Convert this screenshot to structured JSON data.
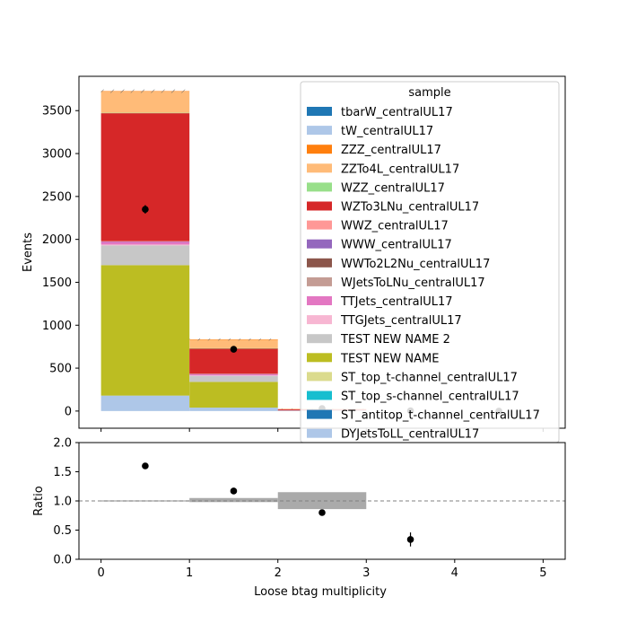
{
  "chart_data": [
    {
      "type": "bar",
      "stacked": true,
      "xlabel": "",
      "ylabel": "Events",
      "xlim": [
        -0.25,
        5.25
      ],
      "ylim": [
        -200,
        3900
      ],
      "yticks": [
        0,
        500,
        1000,
        1500,
        2000,
        2500,
        3000,
        3500
      ],
      "xticks": [
        0,
        1,
        2,
        3,
        4,
        5
      ],
      "bins": [
        [
          0,
          1
        ],
        [
          1,
          2
        ],
        [
          2,
          3
        ],
        [
          3,
          4
        ],
        [
          4,
          5
        ]
      ],
      "legend": {
        "title": "sample",
        "placement": "top-right"
      },
      "series": [
        {
          "name": "DYJetsToLL_centralUL17",
          "color": "#aec7e8",
          "values": [
            180,
            40,
            5,
            0,
            0
          ]
        },
        {
          "name": "ST_antitop_t-channel_centralUL17",
          "color": "#1f77b4",
          "values": [
            0,
            0,
            0,
            0,
            0
          ]
        },
        {
          "name": "ST_top_s-channel_centralUL17",
          "color": "#17becf",
          "values": [
            0,
            0,
            0,
            0,
            0
          ]
        },
        {
          "name": "ST_top_t-channel_centralUL17",
          "color": "#dbdb8d",
          "values": [
            0,
            0,
            0,
            0,
            0
          ]
        },
        {
          "name": "TEST NEW NAME",
          "color": "#bcbd22",
          "values": [
            1520,
            300,
            3,
            0,
            0
          ]
        },
        {
          "name": "TEST NEW NAME 2",
          "color": "#c7c7c7",
          "values": [
            230,
            70,
            2,
            0,
            0
          ]
        },
        {
          "name": "TTGJets_centralUL17",
          "color": "#f7b6d2",
          "values": [
            10,
            5,
            0,
            0,
            0
          ]
        },
        {
          "name": "TTJets_centralUL17",
          "color": "#e377c2",
          "values": [
            30,
            15,
            1,
            0,
            0
          ]
        },
        {
          "name": "WJetsToLNu_centralUL17",
          "color": "#c49c94",
          "values": [
            0,
            0,
            0,
            0,
            0
          ]
        },
        {
          "name": "WWTo2L2Nu_centralUL17",
          "color": "#8c564b",
          "values": [
            0,
            0,
            0,
            0,
            0
          ]
        },
        {
          "name": "WWW_centralUL17",
          "color": "#9467bd",
          "values": [
            5,
            2,
            0,
            0,
            0
          ]
        },
        {
          "name": "WWZ_centralUL17",
          "color": "#ff9896",
          "values": [
            5,
            3,
            0,
            0,
            0
          ]
        },
        {
          "name": "WZTo3LNu_centralUL17",
          "color": "#d62728",
          "values": [
            1490,
            295,
            12,
            0,
            0
          ]
        },
        {
          "name": "WZZ_centralUL17",
          "color": "#98df8a",
          "values": [
            5,
            2,
            0,
            0,
            0
          ]
        },
        {
          "name": "ZZTo4L_centralUL17",
          "color": "#ffbb78",
          "values": [
            250,
            100,
            3,
            0,
            0
          ]
        },
        {
          "name": "ZZZ_centralUL17",
          "color": "#ff7f0e",
          "values": [
            2,
            1,
            0,
            0,
            0
          ]
        },
        {
          "name": "tW_centralUL17",
          "color": "#aec7e8",
          "values": [
            0,
            0,
            0,
            0,
            0
          ]
        },
        {
          "name": "tbarW_centralUL17",
          "color": "#1f77b4",
          "values": [
            0,
            0,
            0,
            0,
            0
          ]
        }
      ],
      "data_points": {
        "x": [
          0.5,
          1.5,
          2.5,
          3.5,
          4.5
        ],
        "y": [
          2350,
          720,
          30,
          3,
          0
        ],
        "yerr": [
          48,
          27,
          5,
          2,
          0
        ],
        "color": "#000000"
      },
      "uncertainty": {
        "values": [
          20,
          12,
          3,
          0,
          0
        ],
        "hatch": true
      },
      "legend_order": [
        "tbarW_centralUL17",
        "tW_centralUL17",
        "ZZZ_centralUL17",
        "ZZTo4L_centralUL17",
        "WZZ_centralUL17",
        "WZTo3LNu_centralUL17",
        "WWZ_centralUL17",
        "WWW_centralUL17",
        "WWTo2L2Nu_centralUL17",
        "WJetsToLNu_centralUL17",
        "TTJets_centralUL17",
        "TTGJets_centralUL17",
        "TEST NEW NAME 2",
        "TEST NEW NAME",
        "ST_top_t-channel_centralUL17",
        "ST_top_s-channel_centralUL17",
        "ST_antitop_t-channel_centralUL17",
        "DYJetsToLL_centralUL17"
      ],
      "grid": false
    },
    {
      "type": "scatter",
      "xlabel": "Loose btag multiplicity",
      "ylabel": "Ratio",
      "xlim": [
        -0.25,
        5.25
      ],
      "ylim": [
        0.0,
        2.0
      ],
      "xticks": [
        0,
        1,
        2,
        3,
        4,
        5
      ],
      "yticks": [
        0.0,
        0.5,
        1.0,
        1.5,
        2.0
      ],
      "ytick_labels": [
        "0.0",
        "0.5",
        "1.0",
        "1.5",
        "2.0"
      ],
      "reference_line": 1.0,
      "x": [
        0.5,
        1.5,
        2.5,
        3.5
      ],
      "y": [
        1.6,
        1.17,
        0.8,
        0.34
      ],
      "yerr": [
        0.0,
        0.0,
        0.0,
        0.12
      ],
      "uncertainty_bands": [
        {
          "x": [
            0,
            1
          ],
          "low": 0.99,
          "high": 1.01
        },
        {
          "x": [
            1,
            2
          ],
          "low": 0.98,
          "high": 1.05
        },
        {
          "x": [
            2,
            3
          ],
          "low": 0.86,
          "high": 1.15
        }
      ],
      "grid": false
    }
  ]
}
